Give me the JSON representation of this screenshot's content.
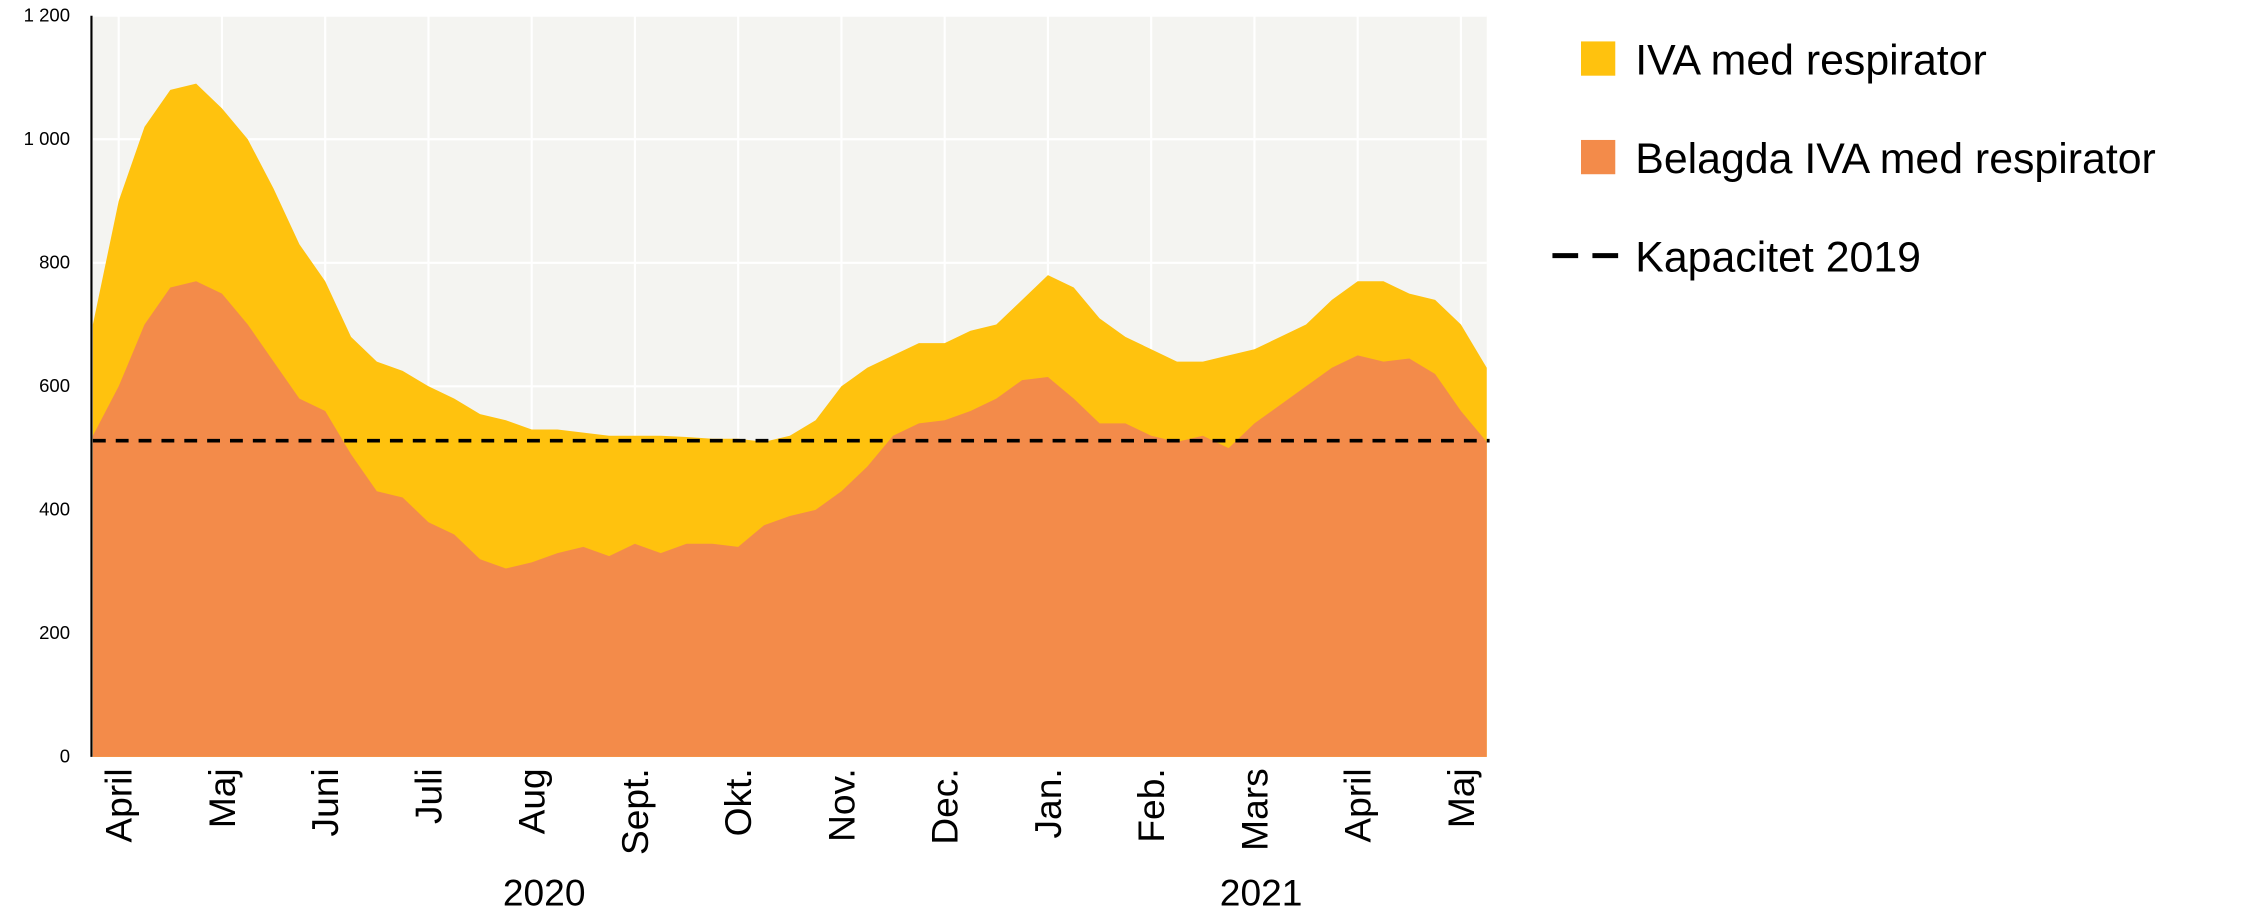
{
  "chart_data": {
    "type": "area",
    "categories": [
      null,
      "April",
      null,
      null,
      null,
      "Maj",
      null,
      null,
      null,
      "Juni",
      null,
      null,
      null,
      "Juli",
      null,
      null,
      null,
      "Aug",
      null,
      null,
      null,
      "Sept.",
      null,
      null,
      null,
      "Okt.",
      null,
      null,
      null,
      "Nov.",
      null,
      null,
      null,
      "Dec.",
      null,
      null,
      null,
      "Jan.",
      null,
      null,
      null,
      "Feb.",
      null,
      null,
      null,
      "Mars",
      null,
      null,
      null,
      "April",
      null,
      null,
      null,
      "Maj",
      null
    ],
    "series": [
      {
        "name": "IVA med respirator",
        "color": "#ffc20e",
        "values": [
          700,
          900,
          1020,
          1080,
          1090,
          1050,
          1000,
          920,
          830,
          770,
          680,
          640,
          625,
          600,
          580,
          555,
          545,
          530,
          530,
          525,
          520,
          520,
          520,
          518,
          515,
          515,
          510,
          520,
          545,
          600,
          630,
          650,
          670,
          670,
          690,
          700,
          740,
          780,
          760,
          710,
          680,
          660,
          640,
          640,
          650,
          660,
          680,
          700,
          740,
          770,
          770,
          750,
          740,
          700,
          630
        ]
      },
      {
        "name": "Belagda IVA med respirator",
        "color": "#f38b4a",
        "values": [
          520,
          600,
          700,
          760,
          770,
          750,
          700,
          640,
          580,
          560,
          490,
          430,
          420,
          380,
          360,
          320,
          305,
          315,
          330,
          340,
          325,
          345,
          330,
          345,
          345,
          340,
          375,
          390,
          400,
          430,
          470,
          520,
          540,
          545,
          560,
          580,
          610,
          615,
          580,
          540,
          540,
          520,
          510,
          520,
          500,
          540,
          570,
          600,
          630,
          650,
          640,
          645,
          620,
          560,
          510
        ]
      }
    ],
    "reference_line": {
      "name": "Kapacitet 2019",
      "value": 512,
      "color": "#000000"
    },
    "annotations": [
      "2020",
      "2021"
    ],
    "ylim": [
      0,
      1200
    ],
    "yticks": [
      0,
      200,
      400,
      600,
      800,
      {
        "value": 1000,
        "label": "1 000"
      },
      {
        "value": 1200,
        "label": "1 200"
      }
    ],
    "grid": true,
    "background": "#f4f4f1"
  }
}
